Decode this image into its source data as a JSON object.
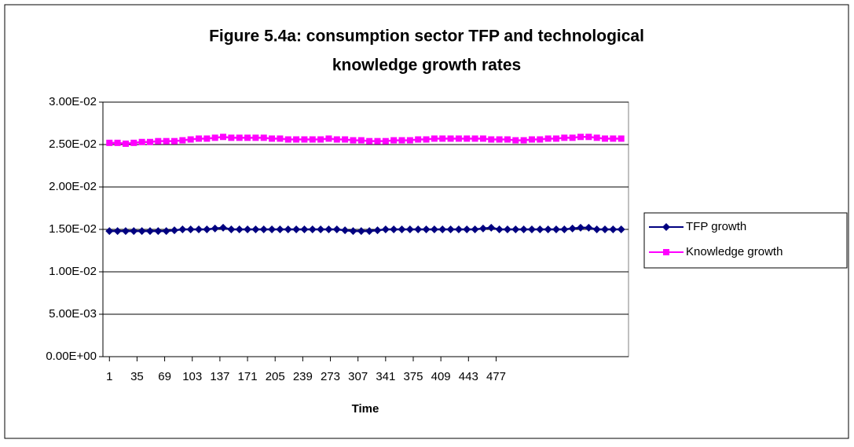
{
  "chart_data": {
    "type": "line",
    "title": [
      "Figure 5.4a: consumption sector TFP and technological",
      "knowledge growth rates"
    ],
    "x_label": "Time",
    "x": [
      1,
      11,
      21,
      31,
      41,
      51,
      61,
      71,
      81,
      91,
      101,
      111,
      121,
      131,
      141,
      151,
      161,
      171,
      181,
      191,
      201,
      211,
      221,
      231,
      241,
      251,
      261,
      271,
      281,
      291,
      301,
      311,
      321,
      331,
      341,
      351,
      361,
      371,
      381,
      391,
      401,
      411,
      421,
      431,
      441,
      451,
      461,
      471,
      481,
      491,
      501,
      511,
      521,
      531,
      541,
      551,
      561,
      571,
      581,
      591,
      601,
      611,
      621,
      631
    ],
    "xlim": [
      -7,
      640
    ],
    "xticks": [
      1,
      35,
      69,
      103,
      137,
      171,
      205,
      239,
      273,
      307,
      341,
      375,
      409,
      443,
      477
    ],
    "ylim": [
      0,
      0.03
    ],
    "yticks": [
      {
        "value": 0,
        "label": "0.00E+00"
      },
      {
        "value": 0.005,
        "label": "5.00E-03"
      },
      {
        "value": 0.01,
        "label": "1.00E-02"
      },
      {
        "value": 0.015,
        "label": "1.50E-02"
      },
      {
        "value": 0.02,
        "label": "2.00E-02"
      },
      {
        "value": 0.025,
        "label": "2.50E-02"
      },
      {
        "value": 0.03,
        "label": "3.00E-02"
      }
    ],
    "grid": true,
    "legend": "right",
    "series": [
      {
        "name": "TFP growth",
        "color": "#000080",
        "marker": "diamond",
        "values": [
          0.0148,
          0.0148,
          0.0148,
          0.0148,
          0.0148,
          0.0148,
          0.0148,
          0.0148,
          0.0149,
          0.015,
          0.015,
          0.015,
          0.015,
          0.0151,
          0.0152,
          0.015,
          0.015,
          0.015,
          0.015,
          0.015,
          0.015,
          0.015,
          0.015,
          0.015,
          0.015,
          0.015,
          0.015,
          0.015,
          0.015,
          0.0149,
          0.0148,
          0.0148,
          0.0148,
          0.0149,
          0.015,
          0.015,
          0.015,
          0.015,
          0.015,
          0.015,
          0.015,
          0.015,
          0.015,
          0.015,
          0.015,
          0.015,
          0.0151,
          0.0152,
          0.015,
          0.015,
          0.015,
          0.015,
          0.015,
          0.015,
          0.015,
          0.015,
          0.015,
          0.0151,
          0.0152,
          0.0152,
          0.015,
          0.015,
          0.015,
          0.015
        ]
      },
      {
        "name": "Knowledge growth",
        "color": "#ff00ff",
        "marker": "square",
        "values": [
          0.0252,
          0.0252,
          0.0251,
          0.0252,
          0.0253,
          0.0253,
          0.0254,
          0.0254,
          0.0254,
          0.0255,
          0.0256,
          0.0257,
          0.0257,
          0.0258,
          0.0259,
          0.0258,
          0.0258,
          0.0258,
          0.0258,
          0.0258,
          0.0257,
          0.0257,
          0.0256,
          0.0256,
          0.0256,
          0.0256,
          0.0256,
          0.0257,
          0.0256,
          0.0256,
          0.0255,
          0.0255,
          0.0254,
          0.0254,
          0.0254,
          0.0255,
          0.0255,
          0.0255,
          0.0256,
          0.0256,
          0.0257,
          0.0257,
          0.0257,
          0.0257,
          0.0257,
          0.0257,
          0.0257,
          0.0256,
          0.0256,
          0.0256,
          0.0255,
          0.0255,
          0.0256,
          0.0256,
          0.0257,
          0.0257,
          0.0258,
          0.0258,
          0.0259,
          0.0259,
          0.0258,
          0.0257,
          0.0257,
          0.0257
        ]
      }
    ]
  }
}
